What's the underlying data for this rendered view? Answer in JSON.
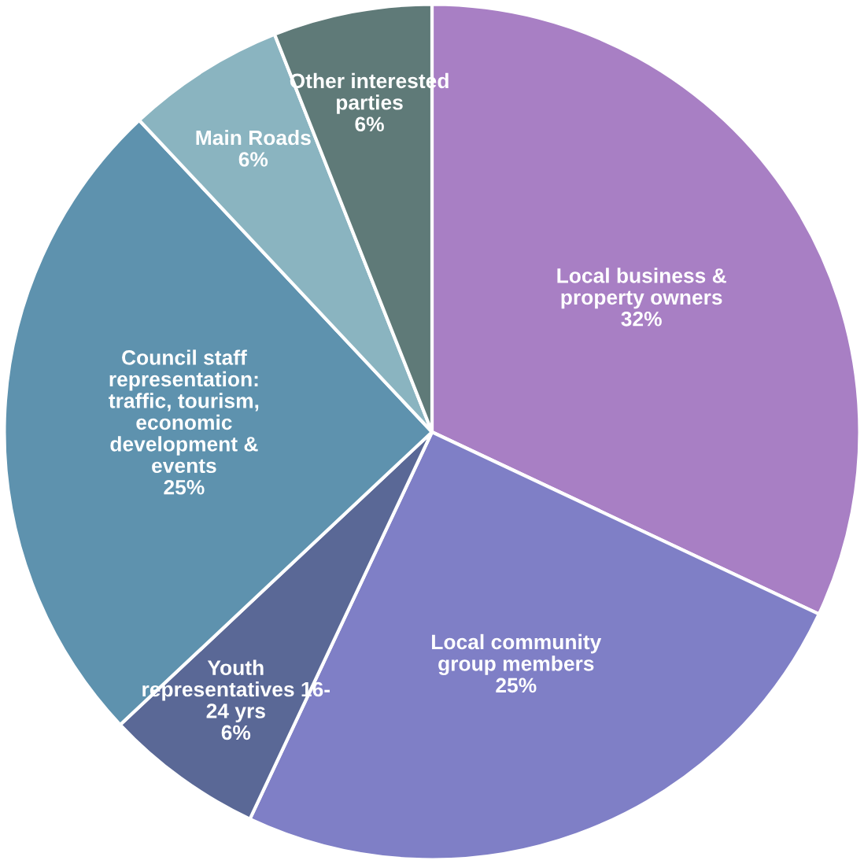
{
  "chart_data": {
    "type": "pie",
    "categories": [
      "Local business &\nproperty owners",
      "Local community\ngroup members",
      "Youth\nrepresentatives 16-\n24 yrs",
      "Council staff\nrepresentation:\ntraffic, tourism,\neconomic\ndevelopment &\nevents",
      "Main Roads",
      "Other interested\nparties"
    ],
    "values": [
      32,
      25,
      6,
      25,
      6,
      6
    ],
    "value_labels": [
      "32%",
      "25%",
      "6%",
      "25%",
      "6%",
      "6%"
    ],
    "colors": [
      "#a87fc4",
      "#7f7fc6",
      "#5a6896",
      "#5e92ae",
      "#8ab4c0",
      "#5f7a78"
    ]
  }
}
